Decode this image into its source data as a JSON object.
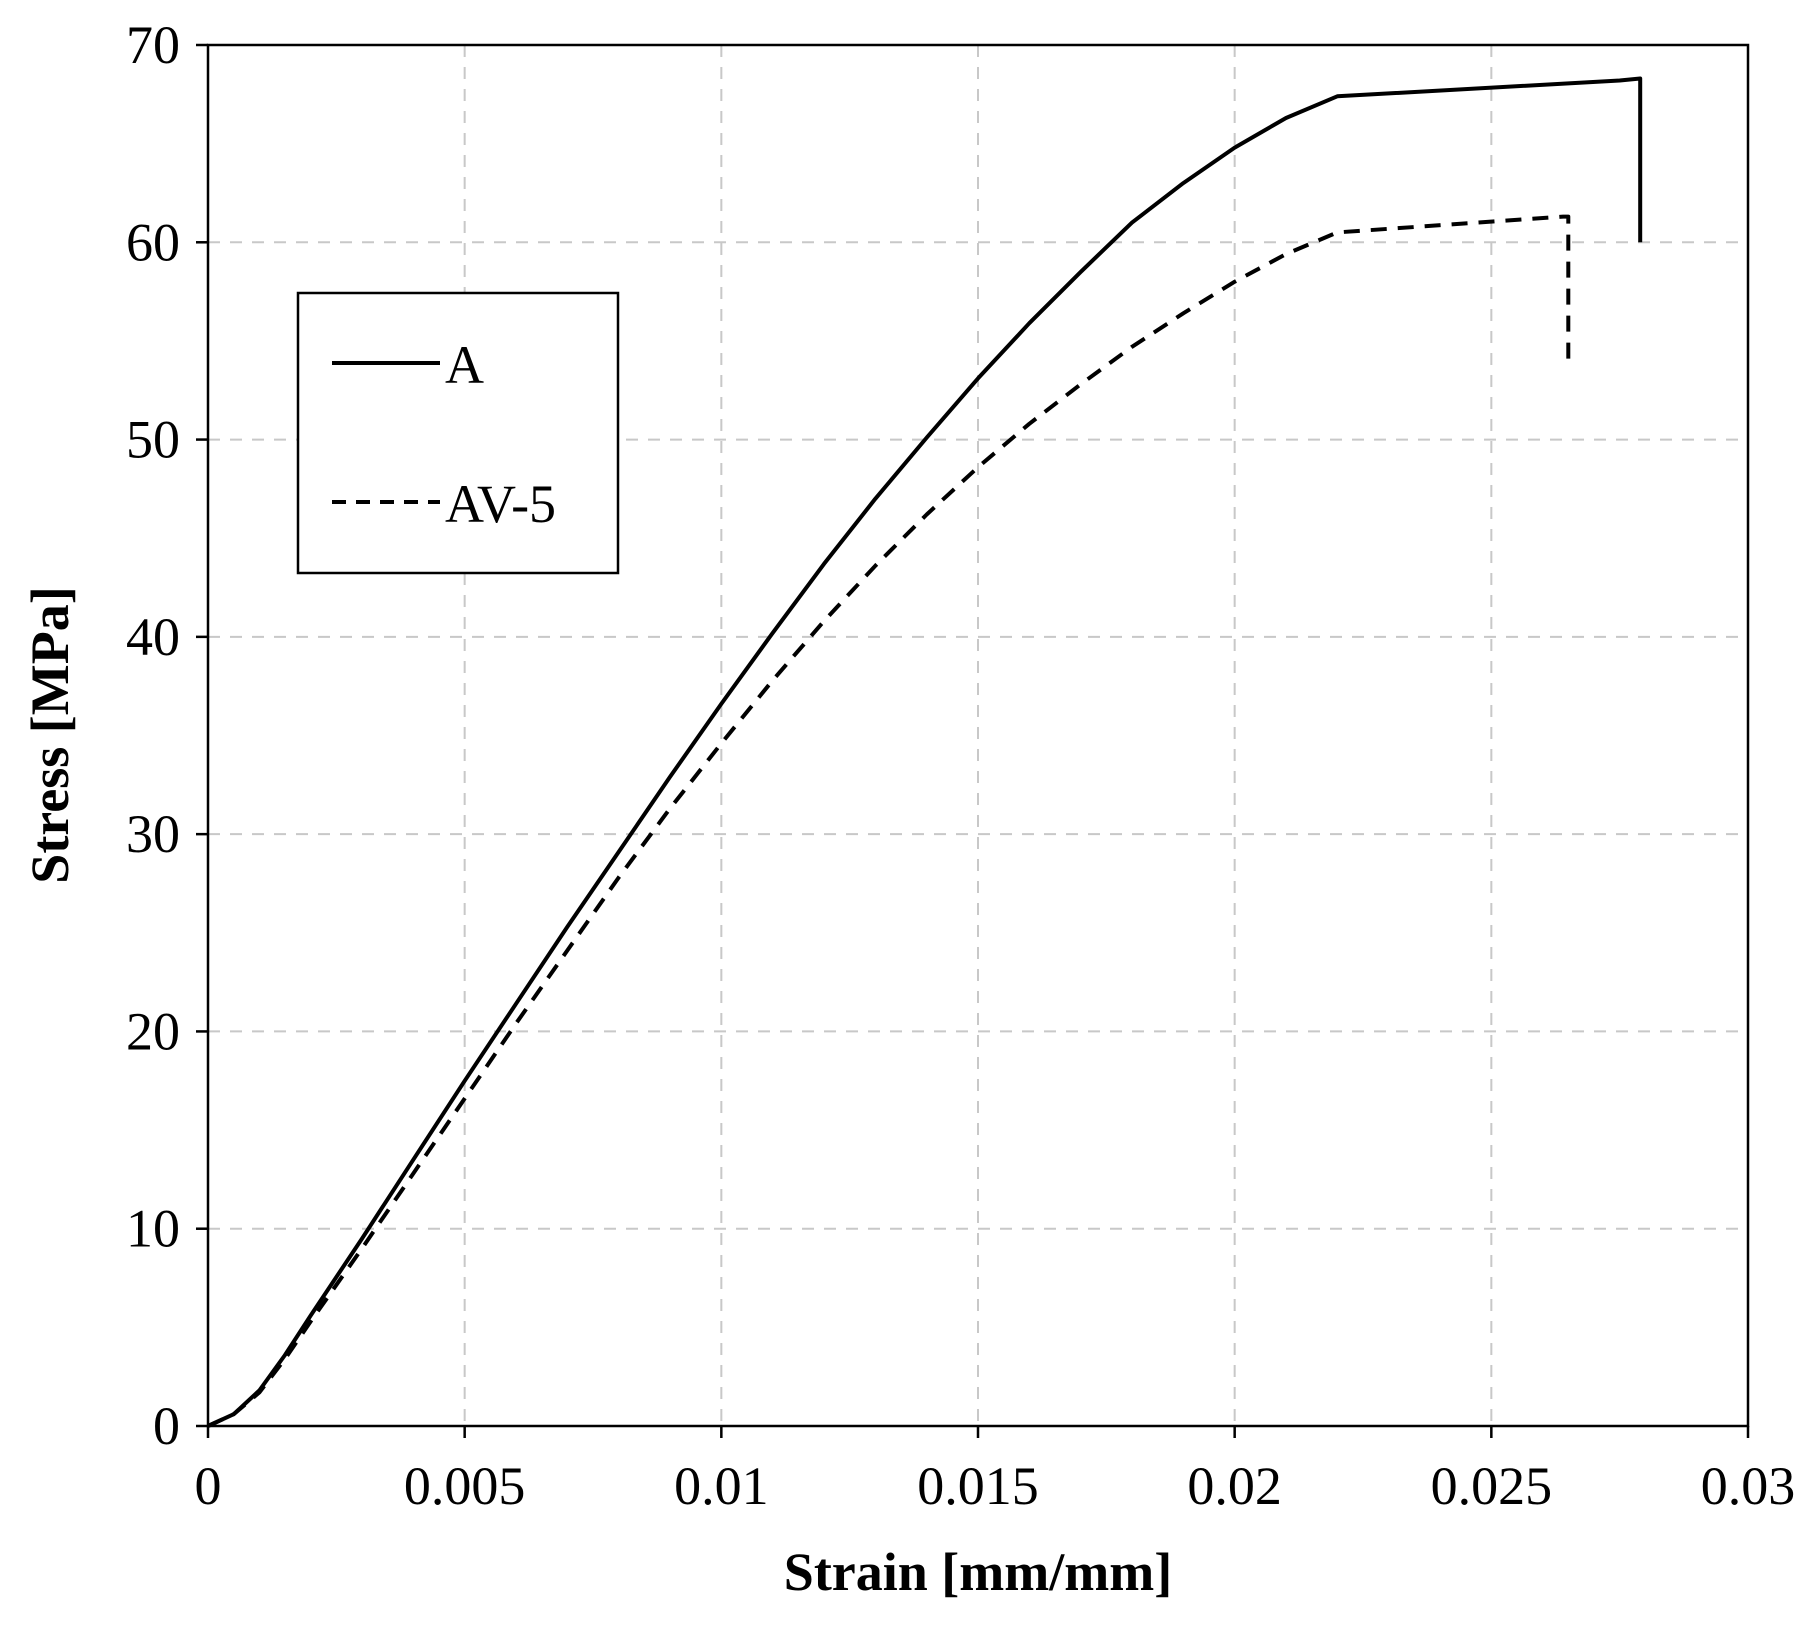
{
  "chart_data": {
    "type": "line",
    "title": "",
    "xlabel": "Strain [mm/mm]",
    "ylabel": "Stress [MPa]",
    "xlim": [
      0,
      0.03
    ],
    "ylim": [
      0,
      70
    ],
    "x_ticks": [
      0,
      0.005,
      0.01,
      0.015,
      0.02,
      0.025,
      0.03
    ],
    "x_tick_labels": [
      "0",
      "0.005",
      "0.01",
      "0.015",
      "0.02",
      "0.025",
      "0.03"
    ],
    "y_ticks": [
      0,
      10,
      20,
      30,
      40,
      50,
      60,
      70
    ],
    "y_tick_labels": [
      "0",
      "10",
      "20",
      "30",
      "40",
      "50",
      "60",
      "70"
    ],
    "grid": true,
    "legend_position": "upper-left",
    "series": [
      {
        "name": "A",
        "line_style": "solid",
        "color": "#000000",
        "points": [
          [
            0,
            0
          ],
          [
            0.0005,
            0.6
          ],
          [
            0.001,
            1.8
          ],
          [
            0.0015,
            3.6
          ],
          [
            0.002,
            5.6
          ],
          [
            0.003,
            9.5
          ],
          [
            0.004,
            13.5
          ],
          [
            0.005,
            17.5
          ],
          [
            0.006,
            21.4
          ],
          [
            0.007,
            25.3
          ],
          [
            0.008,
            29.1
          ],
          [
            0.009,
            32.9
          ],
          [
            0.01,
            36.6
          ],
          [
            0.011,
            40.2
          ],
          [
            0.012,
            43.7
          ],
          [
            0.013,
            47.0
          ],
          [
            0.014,
            50.1
          ],
          [
            0.015,
            53.1
          ],
          [
            0.016,
            55.9
          ],
          [
            0.017,
            58.5
          ],
          [
            0.018,
            61.0
          ],
          [
            0.019,
            63.0
          ],
          [
            0.02,
            64.8
          ],
          [
            0.021,
            66.3
          ],
          [
            0.022,
            67.4
          ],
          [
            0.0275,
            68.2
          ],
          [
            0.0279,
            68.3
          ],
          [
            0.0279,
            60.0
          ]
        ]
      },
      {
        "name": "AV-5",
        "line_style": "dashed",
        "color": "#000000",
        "points": [
          [
            0,
            0
          ],
          [
            0.0005,
            0.6
          ],
          [
            0.001,
            1.7
          ],
          [
            0.0015,
            3.4
          ],
          [
            0.002,
            5.3
          ],
          [
            0.003,
            9.0
          ],
          [
            0.004,
            12.8
          ],
          [
            0.005,
            16.6
          ],
          [
            0.006,
            20.4
          ],
          [
            0.007,
            24.1
          ],
          [
            0.008,
            27.8
          ],
          [
            0.009,
            31.3
          ],
          [
            0.01,
            34.6
          ],
          [
            0.011,
            37.8
          ],
          [
            0.012,
            40.8
          ],
          [
            0.013,
            43.6
          ],
          [
            0.014,
            46.2
          ],
          [
            0.015,
            48.6
          ],
          [
            0.016,
            50.8
          ],
          [
            0.017,
            52.8
          ],
          [
            0.018,
            54.7
          ],
          [
            0.019,
            56.4
          ],
          [
            0.02,
            58.0
          ],
          [
            0.021,
            59.4
          ],
          [
            0.022,
            60.5
          ],
          [
            0.0264,
            61.3
          ],
          [
            0.0265,
            61.3
          ],
          [
            0.0265,
            54.0
          ]
        ]
      }
    ]
  }
}
